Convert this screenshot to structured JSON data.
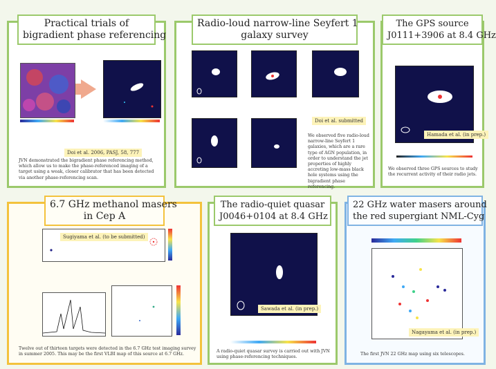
{
  "panels": {
    "p1": {
      "title_line1": "Practical trials of",
      "title_line2": "bigradient phase referencing",
      "citation": "Doi et al. 2006, PASJ, 58, 777",
      "caption": "JVN demonstrated the bigradient phase referencing method, which allow us to make the phase-referenced imaging of a target using a weak, closer calibrator that has been detected via another phase-referencing scan."
    },
    "p2": {
      "title_line1": "Radio-loud narrow-line Seyfert 1",
      "title_line2": "galaxy survey",
      "citation": "Doi et al. submitted",
      "caption": "We observed five radio-loud narrow-line Seyfert 1 galaxies, which are a rare type of AGN population, in order to understand the jet properties of highly accreting low-mass black hole systems using the bigradient phase referencing."
    },
    "p3": {
      "title_line1": "The GPS source",
      "title_line2": "J0111+3906 at 8.4 GHz",
      "citation": "Hamada et al. (in prep.)",
      "caption": "We observed three GPS sources to study the recurrent activity of their radio jets."
    },
    "p4": {
      "title_line1": "6.7 GHz methanol masers",
      "title_line2": "in Cep A",
      "citation": "Sugiyama et al. (to be submitted)",
      "caption": "Twelve out of thirteen targets were detected in the 6.7 GHz test imaging survey in summer 2005. This may be the first VLBI map of this source at 6.7 GHz."
    },
    "p5": {
      "title_line1": "The radio-quiet quasar",
      "title_line2": "J0046+0104 at 8.4 GHz",
      "citation": "Sawada et al. (in prep.)",
      "caption": "A radio-quiet quasar survey is carried out with JVN using phase-referencing techniques."
    },
    "p6": {
      "title_line1": "22 GHz water masers around",
      "title_line2": "the red supergiant NML-Cyg",
      "citation": "Nagayama et al. (in prep.)",
      "caption": "The first JVN 22 GHz map using six telescopes."
    }
  },
  "colors": {
    "green_border": "#9bc96b",
    "orange_border": "#f3c23c",
    "blue_border": "#7fb3e3",
    "citation_bg": "#fdf3b9",
    "map_bg": "#10114a"
  }
}
